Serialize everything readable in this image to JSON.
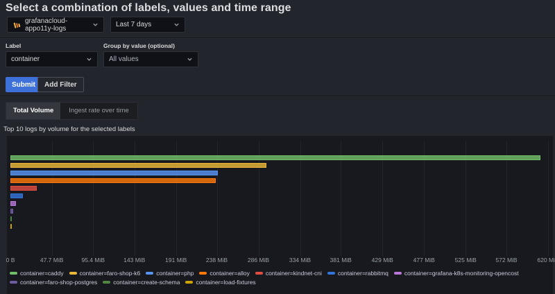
{
  "page": {
    "title": "Select a combination of labels, values and time range"
  },
  "controls": {
    "datasource": {
      "value": "grafanacloud-appo11y-logs",
      "icon": "loki-logo"
    },
    "time_range": {
      "value": "Last 7 days"
    },
    "label_field": {
      "label": "Label",
      "value": "container"
    },
    "group_by_field": {
      "label": "Group by value (optional)",
      "value": "All values"
    },
    "submit_label": "Submit",
    "add_filter_label": "Add Filter"
  },
  "tabs": [
    {
      "label": "Total Volume",
      "active": true
    },
    {
      "label": "Ingest rate over time",
      "active": false
    }
  ],
  "chart_data": {
    "type": "bar",
    "orientation": "horizontal",
    "title": "Top 10 logs by volume for the selected labels",
    "value_unit": "MiB",
    "xlim": [
      0,
      620
    ],
    "grid": true,
    "legend_position": "bottom",
    "x_ticks": [
      {
        "value": 0,
        "label": "0 B"
      },
      {
        "value": 47.7,
        "label": "47.7 MiB"
      },
      {
        "value": 95.4,
        "label": "95.4 MiB"
      },
      {
        "value": 143,
        "label": "143 MiB"
      },
      {
        "value": 191,
        "label": "191 MiB"
      },
      {
        "value": 238,
        "label": "238 MiB"
      },
      {
        "value": 286,
        "label": "286 MiB"
      },
      {
        "value": 334,
        "label": "334 MiB"
      },
      {
        "value": 381,
        "label": "381 MiB"
      },
      {
        "value": 429,
        "label": "429 MiB"
      },
      {
        "value": 477,
        "label": "477 MiB"
      },
      {
        "value": 525,
        "label": "525 MiB"
      },
      {
        "value": 572,
        "label": "572 MiB"
      },
      {
        "value": 620,
        "label": "620 MiB"
      }
    ],
    "series": [
      {
        "name": "container=caddy",
        "value_mib": 611,
        "color": "#73BF69"
      },
      {
        "name": "container=faro-shop-k6",
        "value_mib": 295,
        "color": "#EAB839"
      },
      {
        "name": "container=php",
        "value_mib": 239,
        "color": "#5794F2"
      },
      {
        "name": "container=alloy",
        "value_mib": 237,
        "color": "#FF780A"
      },
      {
        "name": "container=kindnet-cni",
        "value_mib": 30,
        "color": "#E24D42"
      },
      {
        "name": "container=rabbitmq",
        "value_mib": 14.6,
        "color": "#3274D9"
      },
      {
        "name": "container=grafana-k8s-monitoring-opencost",
        "value_mib": 6.6,
        "color": "#B877D9"
      },
      {
        "name": "container=faro-shop-postgres",
        "value_mib": 3.4,
        "color": "#705DA0"
      },
      {
        "name": "container=create-schema",
        "value_mib": 1.7,
        "color": "#508642"
      },
      {
        "name": "container=load-fixtures",
        "value_mib": 1.2,
        "color": "#CCA300"
      }
    ]
  }
}
